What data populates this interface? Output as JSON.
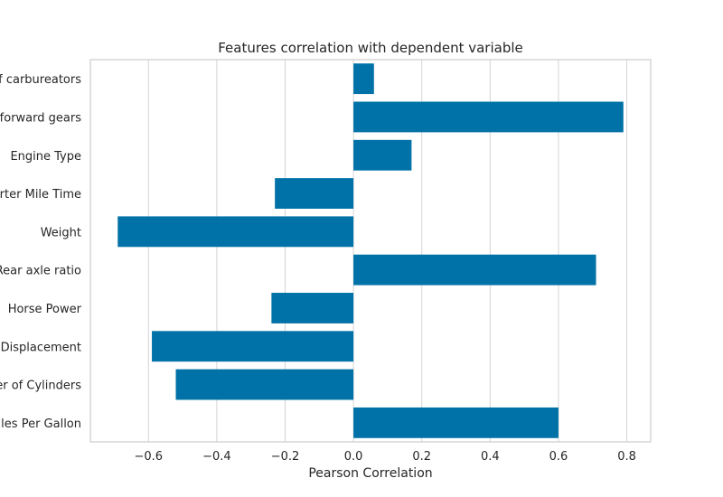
{
  "chart_data": {
    "type": "bar",
    "orientation": "horizontal",
    "title": "Features correlation with dependent variable",
    "xlabel": "Pearson Correlation",
    "ylabel": "",
    "categories": [
      "Miles Per Gallon",
      "Number of Cylinders",
      "Displacement",
      "Horse Power",
      "Rear axle ratio",
      "Weight",
      "Quarter Mile Time",
      "Engine Type",
      "Number of forward gears",
      "Number of carbureators"
    ],
    "category_labels_visible": [
      "iles Per Gallon",
      "er of Cylinders",
      "Displacement",
      "Horse Power",
      "Rear axle ratio",
      "Weight",
      "arter Mile Time",
      "Engine Type",
      "f forward gears",
      "of carbureators"
    ],
    "values": [
      0.6,
      -0.52,
      -0.59,
      -0.24,
      0.71,
      -0.69,
      -0.23,
      0.17,
      0.79,
      0.06
    ],
    "xlim": [
      -0.77,
      0.87
    ],
    "xticks": [
      -0.6,
      -0.4,
      -0.2,
      0.0,
      0.2,
      0.4,
      0.6,
      0.8
    ],
    "xtick_labels": [
      "−0.6",
      "−0.4",
      "−0.2",
      "0.0",
      "0.2",
      "0.4",
      "0.6",
      "0.8"
    ],
    "grid": true,
    "bar_color": "#0072a7",
    "grid_color": "#d4d4d4",
    "frame_color": "#cccccc"
  }
}
